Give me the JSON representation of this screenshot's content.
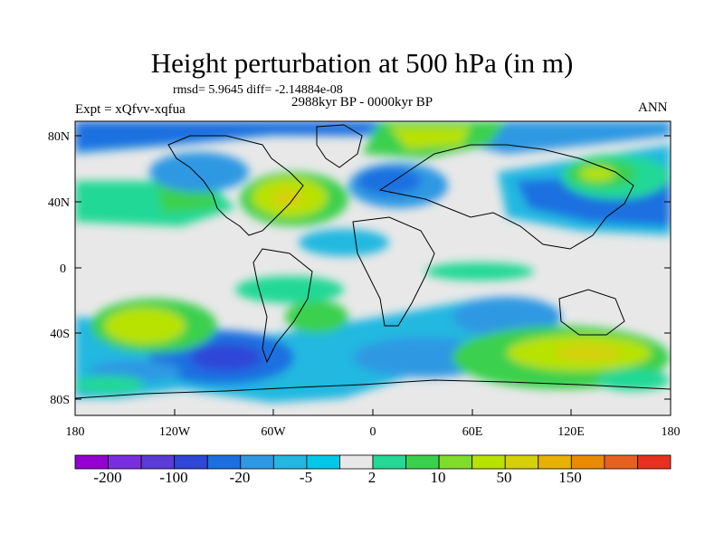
{
  "title": "Height perturbation at 500 hPa (in m)",
  "stats": "rmsd= 5.9645 diff= -2.14884e-08",
  "period": "2988kyr BP - 0000kyr BP",
  "experiment": "Expt = xQfvv-xqfua",
  "season": "ANN",
  "y_ticks": [
    "80N",
    "40N",
    "0",
    "40S",
    "80S"
  ],
  "x_ticks": [
    "180",
    "120W",
    "60W",
    "0",
    "60E",
    "120E",
    "180"
  ],
  "colorbar": {
    "colors": [
      "#9400d3",
      "#7a2de0",
      "#5a3bd6",
      "#2f46d8",
      "#1c6fe0",
      "#2f98e3",
      "#22b8e0",
      "#00c8e6",
      "#e8e8e8",
      "#24d896",
      "#3ad04e",
      "#80dc2a",
      "#b8e200",
      "#d6d00a",
      "#e8b000",
      "#ea8a00",
      "#e86020",
      "#e83020"
    ],
    "labels": [
      "-200",
      "-100",
      "-20",
      "-5",
      "2",
      "10",
      "50",
      "150"
    ]
  }
}
